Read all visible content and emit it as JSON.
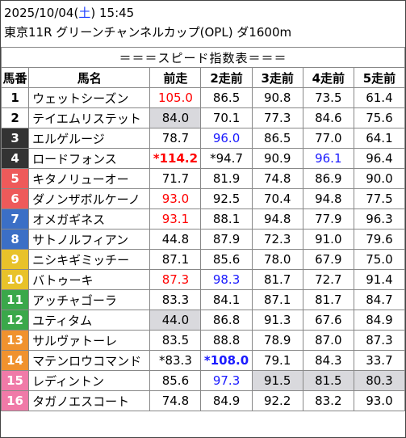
{
  "header": {
    "date": "2025/10/04",
    "dow_open": "(",
    "dow": "土",
    "dow_close": ")",
    "time": "15:45",
    "race": "東京11R グリーンチャンネルカップ(OPL) ダ1600m"
  },
  "banner": "＝＝＝スピード指数表＝＝＝",
  "columns": [
    "馬番",
    "馬名",
    "前走",
    "2走前",
    "3走前",
    "4走前",
    "5走前"
  ],
  "colors": {
    "red": "#ff0000",
    "blue": "#1a1aff",
    "highlight": "#d9d9dd"
  },
  "rows": [
    {
      "num": "1",
      "name": "ウェットシーズン",
      "bg": "#ffffff",
      "fg": "#000000",
      "v": [
        {
          "t": "105.0",
          "c": "red"
        },
        {
          "t": "86.5"
        },
        {
          "t": "90.8"
        },
        {
          "t": "73.5"
        },
        {
          "t": "61.4"
        }
      ]
    },
    {
      "num": "2",
      "name": "テイエムリステット",
      "bg": "#ffffff",
      "fg": "#000000",
      "v": [
        {
          "t": "84.0",
          "g": true
        },
        {
          "t": "70.1"
        },
        {
          "t": "77.3"
        },
        {
          "t": "84.6"
        },
        {
          "t": "75.6"
        }
      ]
    },
    {
      "num": "3",
      "name": "エルゲルージ",
      "bg": "#333333",
      "fg": "#ffffff",
      "v": [
        {
          "t": "78.7"
        },
        {
          "t": "96.0",
          "c": "blue"
        },
        {
          "t": "86.5"
        },
        {
          "t": "77.0"
        },
        {
          "t": "64.1"
        }
      ]
    },
    {
      "num": "4",
      "name": "ロードフォンス",
      "bg": "#333333",
      "fg": "#ffffff",
      "v": [
        {
          "t": "*114.2",
          "c": "red",
          "b": true
        },
        {
          "t": "*94.7"
        },
        {
          "t": "90.9"
        },
        {
          "t": "96.1",
          "c": "blue"
        },
        {
          "t": "96.4"
        }
      ]
    },
    {
      "num": "5",
      "name": "キタノリューオー",
      "bg": "#ee5a5a",
      "fg": "#ffffff",
      "v": [
        {
          "t": "71.7"
        },
        {
          "t": "81.9"
        },
        {
          "t": "74.8"
        },
        {
          "t": "86.9"
        },
        {
          "t": "90.0"
        }
      ]
    },
    {
      "num": "6",
      "name": "ダノンザボルケーノ",
      "bg": "#ee5a5a",
      "fg": "#ffffff",
      "v": [
        {
          "t": "93.0",
          "c": "red"
        },
        {
          "t": "92.5"
        },
        {
          "t": "70.4"
        },
        {
          "t": "94.8"
        },
        {
          "t": "77.5"
        }
      ]
    },
    {
      "num": "7",
      "name": "オメガギネス",
      "bg": "#3b6fc6",
      "fg": "#ffffff",
      "v": [
        {
          "t": "93.1",
          "c": "red"
        },
        {
          "t": "88.1"
        },
        {
          "t": "94.8"
        },
        {
          "t": "77.9"
        },
        {
          "t": "96.3"
        }
      ]
    },
    {
      "num": "8",
      "name": "サトノルフィアン",
      "bg": "#3b6fc6",
      "fg": "#ffffff",
      "v": [
        {
          "t": "44.8"
        },
        {
          "t": "87.9"
        },
        {
          "t": "72.3"
        },
        {
          "t": "91.0"
        },
        {
          "t": "79.6"
        }
      ]
    },
    {
      "num": "9",
      "name": "ニシキギミッチー",
      "bg": "#e8c22a",
      "fg": "#ffffff",
      "v": [
        {
          "t": "87.1"
        },
        {
          "t": "85.6"
        },
        {
          "t": "78.0"
        },
        {
          "t": "67.9"
        },
        {
          "t": "75.0"
        }
      ]
    },
    {
      "num": "10",
      "name": "バトゥーキ",
      "bg": "#e8c22a",
      "fg": "#ffffff",
      "v": [
        {
          "t": "87.3",
          "c": "red"
        },
        {
          "t": "98.3",
          "c": "blue"
        },
        {
          "t": "81.7"
        },
        {
          "t": "72.7"
        },
        {
          "t": "91.4"
        }
      ]
    },
    {
      "num": "11",
      "name": "アッチャゴーラ",
      "bg": "#3aa84a",
      "fg": "#ffffff",
      "v": [
        {
          "t": "83.3"
        },
        {
          "t": "84.1"
        },
        {
          "t": "87.1"
        },
        {
          "t": "81.7"
        },
        {
          "t": "84.7"
        }
      ]
    },
    {
      "num": "12",
      "name": "ユティタム",
      "bg": "#3aa84a",
      "fg": "#ffffff",
      "v": [
        {
          "t": "44.0",
          "g": true
        },
        {
          "t": "86.8"
        },
        {
          "t": "91.3"
        },
        {
          "t": "67.6"
        },
        {
          "t": "84.9"
        }
      ]
    },
    {
      "num": "13",
      "name": "サルヴァトーレ",
      "bg": "#f0922e",
      "fg": "#ffffff",
      "v": [
        {
          "t": "83.5"
        },
        {
          "t": "88.8"
        },
        {
          "t": "78.9"
        },
        {
          "t": "87.0"
        },
        {
          "t": "87.3"
        }
      ]
    },
    {
      "num": "14",
      "name": "マテンロウコマンド",
      "bg": "#f0922e",
      "fg": "#ffffff",
      "v": [
        {
          "t": "*83.3"
        },
        {
          "t": "*108.0",
          "c": "blue",
          "b": true
        },
        {
          "t": "79.1"
        },
        {
          "t": "84.3"
        },
        {
          "t": "33.7"
        }
      ]
    },
    {
      "num": "15",
      "name": "レディントン",
      "bg": "#f07aa8",
      "fg": "#ffffff",
      "v": [
        {
          "t": "85.6"
        },
        {
          "t": "97.3",
          "c": "blue"
        },
        {
          "t": "91.5",
          "g": true
        },
        {
          "t": "81.5",
          "g": true
        },
        {
          "t": "80.3",
          "g": true
        }
      ]
    },
    {
      "num": "16",
      "name": "タガノエスコート",
      "bg": "#f07aa8",
      "fg": "#ffffff",
      "v": [
        {
          "t": "74.8"
        },
        {
          "t": "84.9"
        },
        {
          "t": "92.2"
        },
        {
          "t": "83.2"
        },
        {
          "t": "93.0"
        }
      ]
    }
  ]
}
